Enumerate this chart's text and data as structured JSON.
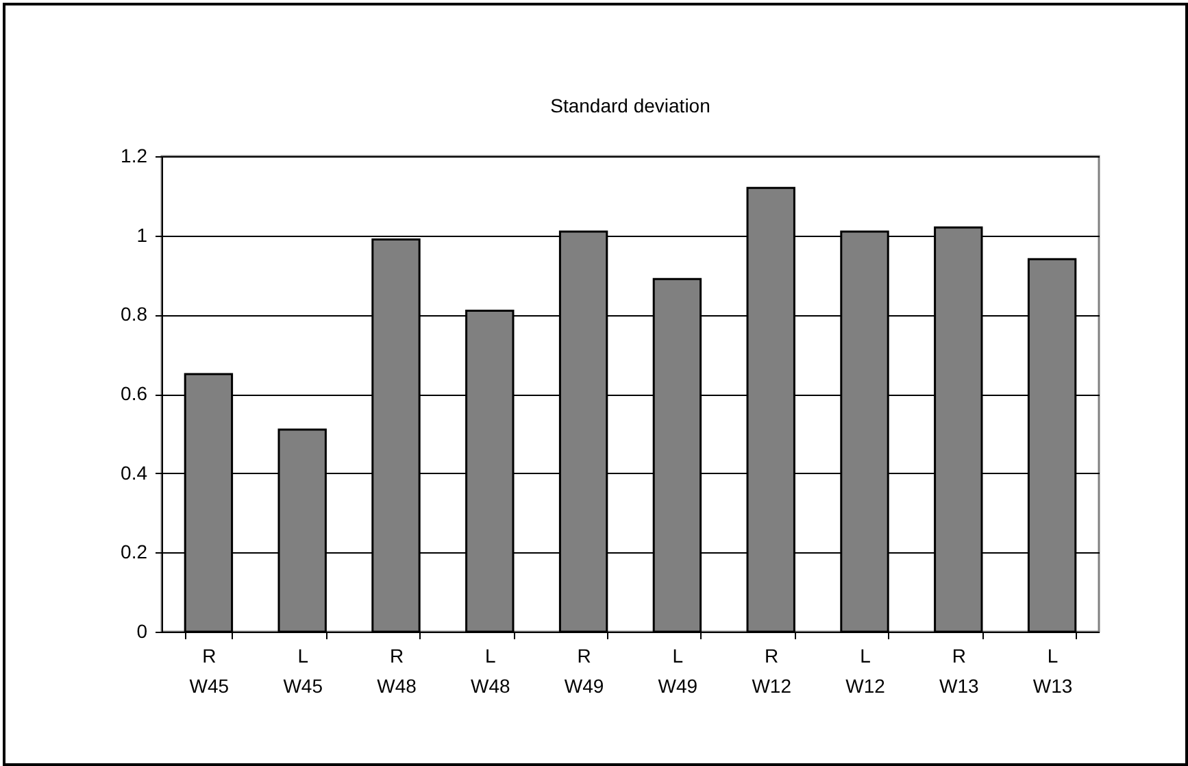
{
  "chart_data": {
    "type": "bar",
    "title": "Standard deviation",
    "categories": [
      "R\nW45",
      "L\nW45",
      "R\nW48",
      "L\nW48",
      "R\nW49",
      "L\nW49",
      "R\nW12",
      "L\nW12",
      "R\nW13",
      "L\nW13"
    ],
    "values": [
      0.65,
      0.51,
      0.99,
      0.81,
      1.01,
      0.89,
      1.12,
      1.01,
      1.02,
      0.94
    ],
    "color": "#808080",
    "ylim": [
      0,
      1.2
    ],
    "yticks": [
      0,
      0.2,
      0.4,
      0.6,
      0.8,
      1,
      1.2
    ],
    "grid": "y"
  }
}
